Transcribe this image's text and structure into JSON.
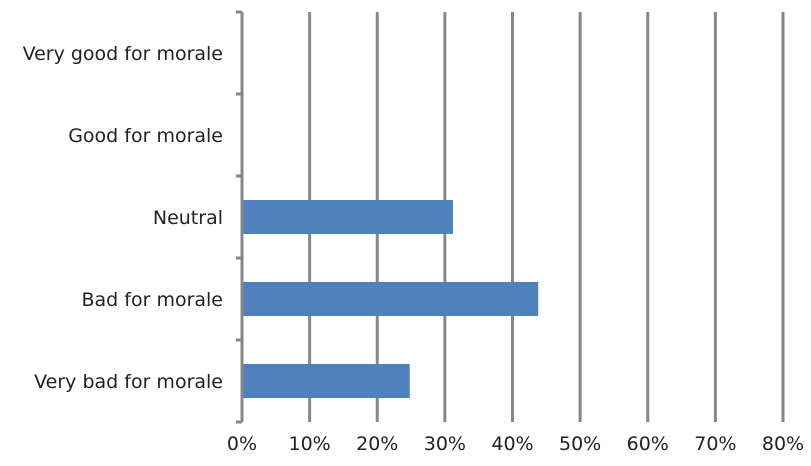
{
  "chart_data": {
    "type": "bar",
    "orientation": "horizontal",
    "categories": [
      "Very good for morale",
      "Good for morale",
      "Neutral",
      "Bad for morale",
      "Very bad for morale"
    ],
    "values": [
      0,
      0,
      31.2,
      43.8,
      24.8
    ],
    "value_unit": "%",
    "xlim": [
      0,
      80
    ],
    "x_ticks": [
      0,
      10,
      20,
      30,
      40,
      50,
      60,
      70,
      80
    ],
    "x_tick_labels": [
      "0%",
      "10%",
      "20%",
      "30%",
      "40%",
      "50%",
      "60%",
      "70%",
      "80%"
    ],
    "gridlines": "vertical",
    "legend": "none",
    "title": "",
    "xlabel": "",
    "ylabel": "",
    "colors": {
      "bar": "#4f81bd",
      "grid": "#878787",
      "axis": "#878787",
      "text": "#222222"
    }
  }
}
